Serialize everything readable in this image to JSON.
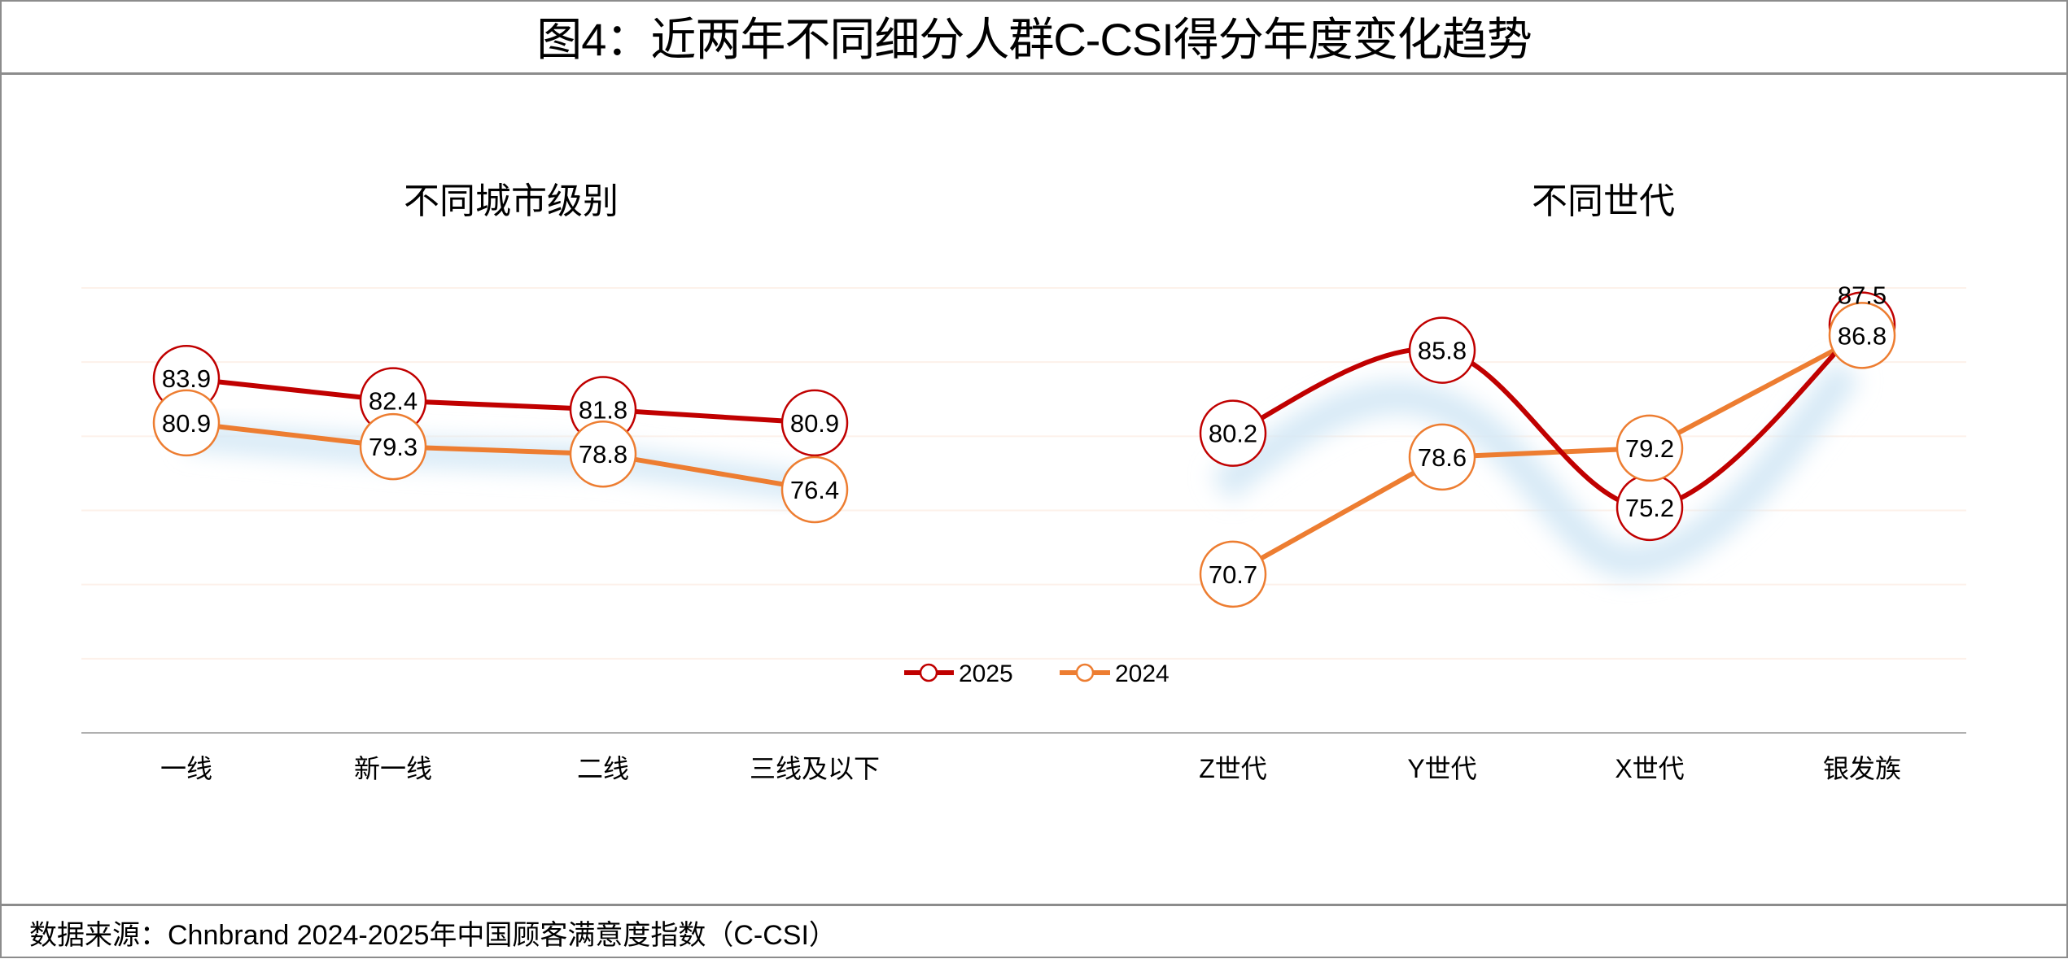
{
  "title": "图4：近两年不同细分人群C-CSI得分年度变化趋势",
  "footer": "数据来源：Chnbrand 2024-2025年中国顾客满意度指数（C-CSI）",
  "colors": {
    "series_2025": "#C00000",
    "series_2024": "#ED7D31",
    "shadow": "#d6e9f6",
    "grid": "#fdf1ea",
    "axis": "#b0b0b0"
  },
  "legend": {
    "placement": "bottom-center",
    "items": [
      "2025",
      "2024"
    ]
  },
  "chart_data": [
    {
      "type": "line",
      "title": "不同城市级别",
      "categories": [
        "一线",
        "新一线",
        "二线",
        "三线及以下"
      ],
      "series": [
        {
          "name": "2025",
          "values": [
            83.9,
            82.4,
            81.8,
            80.9
          ],
          "smooth": false
        },
        {
          "name": "2024",
          "values": [
            80.9,
            79.3,
            78.8,
            76.4
          ],
          "smooth": false
        }
      ],
      "ylim": [
        60,
        90
      ],
      "grid": true,
      "data_labels": true
    },
    {
      "type": "line",
      "title": "不同世代",
      "categories": [
        "Z世代",
        "Y世代",
        "X世代",
        "银发族"
      ],
      "series": [
        {
          "name": "2025",
          "values": [
            80.2,
            85.8,
            75.2,
            87.5
          ],
          "smooth": true
        },
        {
          "name": "2024",
          "values": [
            70.7,
            78.6,
            79.2,
            86.8
          ],
          "smooth": false
        }
      ],
      "ylim": [
        60,
        90
      ],
      "grid": true,
      "data_labels": true
    }
  ]
}
